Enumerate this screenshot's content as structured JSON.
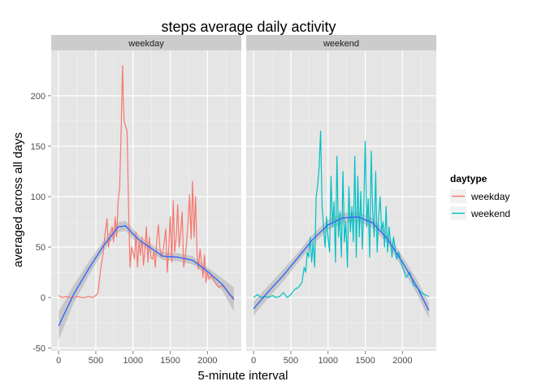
{
  "chart_data": {
    "type": "line",
    "title": "steps average daily activity",
    "xlabel": "5-minute interval",
    "ylabel": "averaged across all days",
    "xlim": [
      -100,
      2455
    ],
    "ylim": [
      -53,
      245
    ],
    "x_ticks": [
      0,
      500,
      1000,
      1500,
      2000
    ],
    "y_ticks": [
      -50,
      0,
      50,
      100,
      150,
      200
    ],
    "grid": true,
    "legend": {
      "title": "daytype",
      "placement": "right",
      "entries": [
        {
          "name": "weekday",
          "color": "#f8766d"
        },
        {
          "name": "weekend",
          "color": "#00bfc4"
        }
      ]
    },
    "smooth_color": "#3366ff",
    "band_color": "#999999",
    "panels": [
      {
        "strip": "weekday",
        "color": "#f8766d",
        "series": [
          {
            "name": "weekday",
            "x": [
              0,
              50,
              100,
              150,
              200,
              250,
              300,
              350,
              400,
              450,
              500,
              530,
              560,
              600,
              620,
              650,
              670,
              700,
              720,
              740,
              760,
              780,
              800,
              820,
              840,
              850,
              860,
              870,
              880,
              900,
              920,
              940,
              960,
              980,
              1000,
              1020,
              1040,
              1060,
              1080,
              1100,
              1120,
              1140,
              1160,
              1180,
              1200,
              1220,
              1240,
              1260,
              1280,
              1300,
              1320,
              1340,
              1360,
              1380,
              1400,
              1420,
              1440,
              1460,
              1480,
              1500,
              1520,
              1540,
              1560,
              1580,
              1600,
              1620,
              1640,
              1660,
              1680,
              1700,
              1720,
              1740,
              1760,
              1780,
              1800,
              1820,
              1840,
              1860,
              1880,
              1900,
              1920,
              1940,
              1960,
              1980,
              2000,
              2020,
              2050,
              2100,
              2150,
              2200,
              2250,
              2300,
              2355
            ],
            "y": [
              2,
              0,
              1,
              0,
              0,
              1,
              0,
              0,
              1,
              0,
              2,
              5,
              25,
              45,
              60,
              78,
              50,
              65,
              70,
              55,
              80,
              60,
              95,
              110,
              165,
              200,
              230,
              195,
              175,
              170,
              165,
              90,
              30,
              50,
              45,
              38,
              65,
              30,
              55,
              42,
              60,
              32,
              48,
              70,
              35,
              60,
              40,
              38,
              45,
              30,
              58,
              72,
              50,
              40,
              45,
              55,
              68,
              25,
              48,
              80,
              35,
              96,
              45,
              60,
              92,
              50,
              65,
              85,
              30,
              40,
              55,
              75,
              102,
              58,
              115,
              60,
              100,
              45,
              28,
              48,
              35,
              20,
              42,
              15,
              25,
              18,
              22,
              15,
              10,
              12,
              8,
              2,
              0
            ]
          }
        ],
        "smooth": {
          "x": [
            0,
            200,
            400,
            600,
            800,
            900,
            1000,
            1100,
            1200,
            1400,
            1600,
            1800,
            2000,
            2200,
            2355
          ],
          "y": [
            -28,
            3,
            28,
            51,
            70,
            71,
            63,
            56,
            51,
            41,
            40,
            37,
            26,
            13,
            -2
          ],
          "se": [
            14,
            9,
            7,
            5,
            5,
            5,
            5,
            4,
            4,
            4,
            4,
            4,
            4,
            6,
            12
          ]
        }
      },
      {
        "strip": "weekend",
        "color": "#00bfc4",
        "series": [
          {
            "name": "weekend",
            "x": [
              0,
              50,
              100,
              150,
              200,
              250,
              300,
              350,
              400,
              450,
              500,
              550,
              600,
              650,
              680,
              700,
              720,
              740,
              760,
              780,
              800,
              820,
              840,
              860,
              880,
              900,
              920,
              940,
              960,
              980,
              1000,
              1020,
              1040,
              1060,
              1080,
              1100,
              1120,
              1140,
              1160,
              1180,
              1200,
              1220,
              1240,
              1260,
              1280,
              1300,
              1320,
              1340,
              1360,
              1380,
              1400,
              1420,
              1440,
              1460,
              1480,
              1500,
              1520,
              1540,
              1560,
              1580,
              1600,
              1620,
              1640,
              1660,
              1680,
              1700,
              1720,
              1740,
              1760,
              1780,
              1800,
              1820,
              1840,
              1860,
              1880,
              1900,
              1920,
              1950,
              2000,
              2050,
              2100,
              2150,
              2200,
              2250,
              2300,
              2355
            ],
            "y": [
              0,
              3,
              0,
              1,
              0,
              2,
              0,
              1,
              5,
              0,
              3,
              8,
              10,
              15,
              30,
              25,
              45,
              40,
              60,
              35,
              55,
              30,
              100,
              110,
              130,
              165,
              90,
              70,
              50,
              80,
              60,
              45,
              120,
              70,
              95,
              35,
              140,
              60,
              85,
              40,
              125,
              55,
              75,
              30,
              110,
              65,
              90,
              55,
              140,
              40,
              120,
              60,
              105,
              48,
              88,
              155,
              70,
              98,
              40,
              145,
              85,
              60,
              125,
              45,
              80,
              100,
              65,
              75,
              50,
              90,
              45,
              70,
              55,
              40,
              60,
              50,
              38,
              45,
              30,
              20,
              25,
              12,
              10,
              5,
              3,
              1
            ]
          }
        ],
        "smooth": {
          "x": [
            0,
            200,
            400,
            600,
            800,
            1000,
            1200,
            1400,
            1600,
            1800,
            2000,
            2200,
            2355
          ],
          "y": [
            -11,
            6,
            22,
            40,
            58,
            72,
            79,
            80,
            74,
            58,
            35,
            10,
            -13
          ],
          "se": [
            7,
            6,
            6,
            5,
            5,
            5,
            5,
            5,
            5,
            5,
            6,
            7,
            8
          ]
        }
      }
    ]
  }
}
